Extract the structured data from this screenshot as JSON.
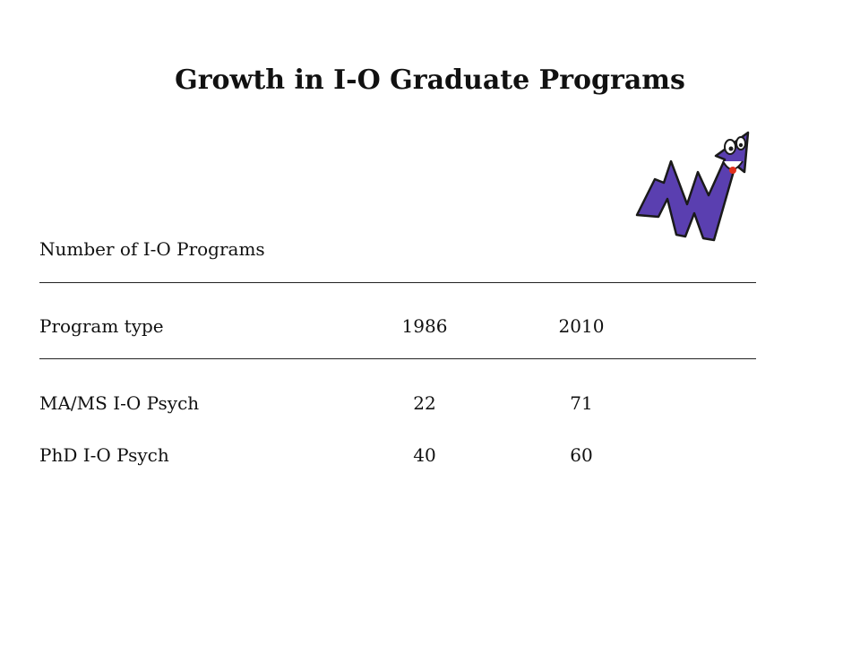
{
  "slide": {
    "title": "Growth in I-O Graduate Programs",
    "section_label": "Number of I-O Programs"
  },
  "table": {
    "headers": [
      "Program type",
      "1986",
      "2010"
    ],
    "rows": [
      [
        "MA/MS I-O Psych",
        "22",
        "71"
      ],
      [
        "PhD I-O Psych",
        "40",
        "60"
      ]
    ]
  },
  "colors": {
    "mascot_fill": "#5a3fb0",
    "mascot_outline": "#1a1a1a",
    "tongue": "#e0301e"
  },
  "icons": {
    "mascot": "smiling-zigzag-arrow-icon"
  }
}
